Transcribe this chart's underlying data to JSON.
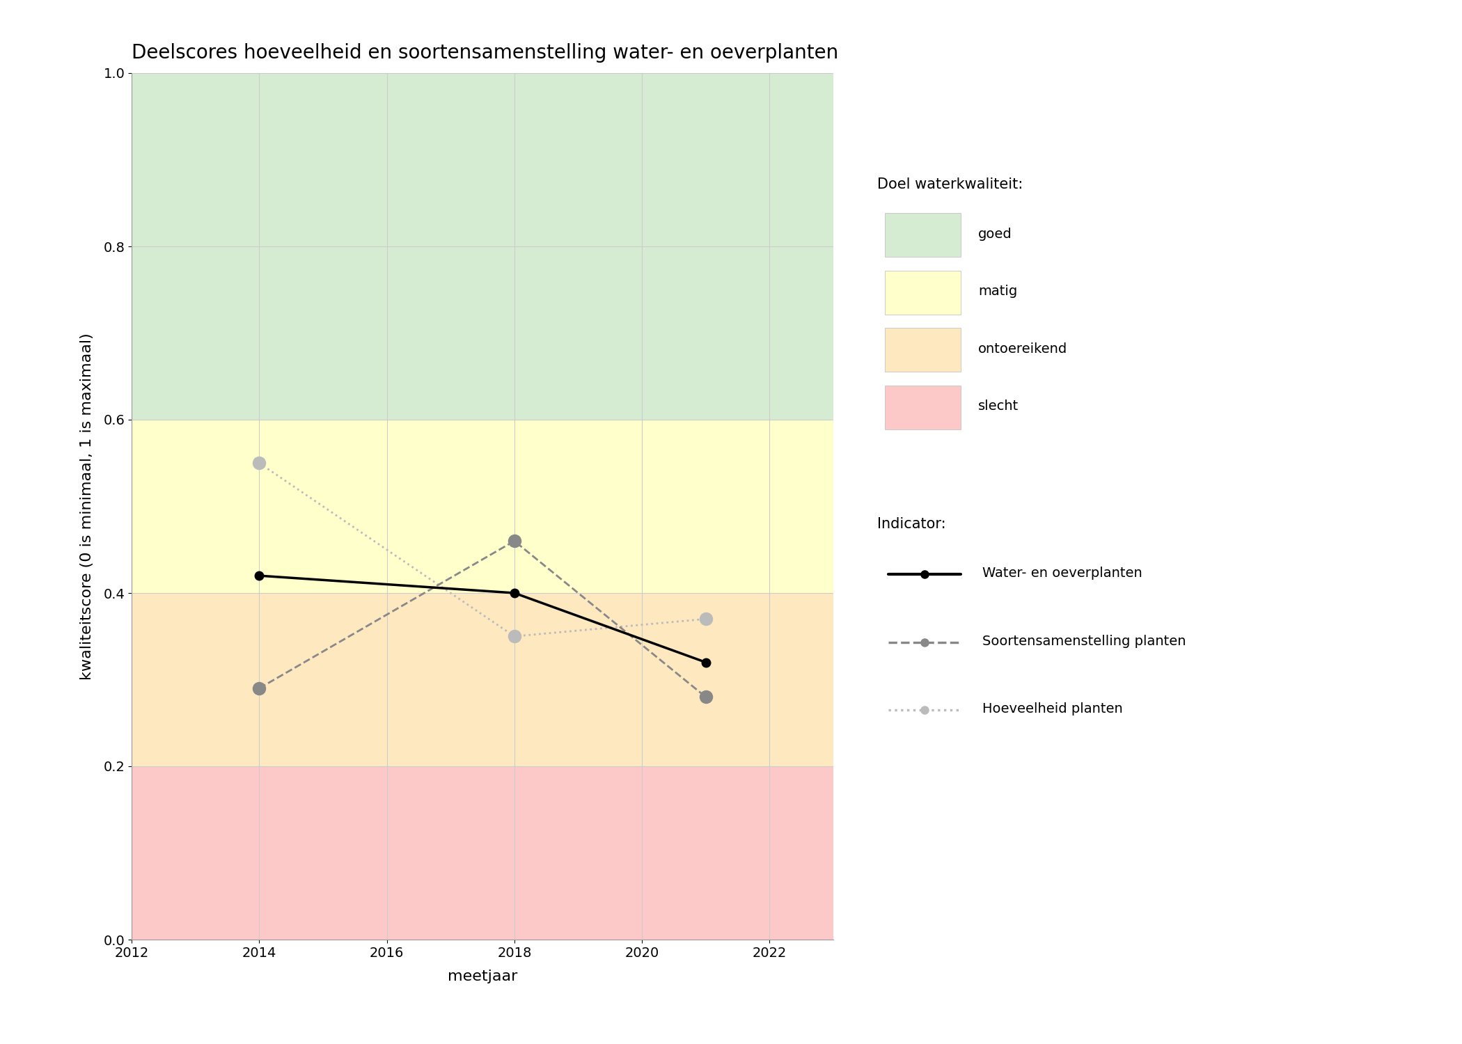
{
  "title": "Deelscores hoeveelheid en soortensamenstelling water- en oeverplanten",
  "xlabel": "meetjaar",
  "ylabel": "kwaliteitscore (0 is minimaal, 1 is maximaal)",
  "xlim": [
    2012,
    2023
  ],
  "ylim": [
    0.0,
    1.0
  ],
  "xticks": [
    2012,
    2014,
    2016,
    2018,
    2020,
    2022
  ],
  "yticks": [
    0.0,
    0.2,
    0.4,
    0.6,
    0.8,
    1.0
  ],
  "bg_bands": [
    {
      "color": "#d6ecd2",
      "ymin": 0.6,
      "ymax": 1.0,
      "label": "goed"
    },
    {
      "color": "#ffffcc",
      "ymin": 0.4,
      "ymax": 0.6,
      "label": "matig"
    },
    {
      "color": "#fde8c0",
      "ymin": 0.2,
      "ymax": 0.4,
      "label": "ontoereikend"
    },
    {
      "color": "#fcc8c8",
      "ymin": 0.0,
      "ymax": 0.2,
      "label": "slecht"
    }
  ],
  "series": {
    "water_oever": {
      "years": [
        2014,
        2018,
        2021
      ],
      "values": [
        0.42,
        0.4,
        0.32
      ],
      "color": "#000000",
      "linestyle": "-",
      "linewidth": 2.5,
      "marker": "o",
      "markersize": 9,
      "markerfacecolor": "#000000",
      "markeredgecolor": "#000000",
      "label": "Water- en oeverplanten",
      "zorder": 5
    },
    "soortensamenstelling": {
      "years": [
        2014,
        2018,
        2021
      ],
      "values": [
        0.29,
        0.46,
        0.28
      ],
      "color": "#888888",
      "linestyle": "--",
      "linewidth": 2.0,
      "marker": "o",
      "markersize": 13,
      "markerfacecolor": "#888888",
      "markeredgecolor": "#888888",
      "label": "Soortensamenstelling planten",
      "zorder": 4
    },
    "hoeveelheid": {
      "years": [
        2014,
        2018,
        2021
      ],
      "values": [
        0.55,
        0.35,
        0.37
      ],
      "color": "#bbbbbb",
      "linestyle": ":",
      "linewidth": 2.0,
      "marker": "o",
      "markersize": 13,
      "markerfacecolor": "#bbbbbb",
      "markeredgecolor": "#bbbbbb",
      "label": "Hoeveelheid planten",
      "zorder": 3
    }
  },
  "legend_quality_title": "Doel waterkwaliteit:",
  "legend_quality_items": [
    {
      "label": "goed",
      "color": "#d6ecd2"
    },
    {
      "label": "matig",
      "color": "#ffffcc"
    },
    {
      "label": "ontoereikend",
      "color": "#fde8c0"
    },
    {
      "label": "slecht",
      "color": "#fcc8c8"
    }
  ],
  "legend_indicator_title": "Indicator:",
  "figure_bg": "#ffffff",
  "plot_bg": "#ffffff",
  "grid_color": "#cccccc",
  "title_fontsize": 20,
  "axis_label_fontsize": 16,
  "tick_fontsize": 14,
  "legend_fontsize": 15
}
